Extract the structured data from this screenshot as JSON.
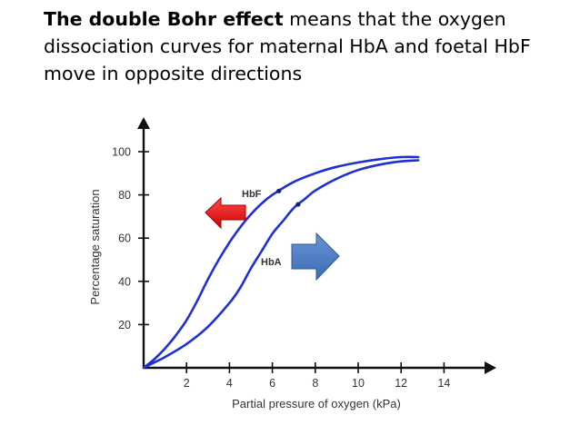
{
  "slide": {
    "heading_bold": "The double Bohr effect",
    "heading_rest": " means that the oxygen dissociation curves for maternal HbA and foetal HbF move in opposite directions"
  },
  "chart_data": {
    "type": "line",
    "xlabel": "Partial pressure of oxygen (kPa)",
    "ylabel": "Percentage saturation",
    "xlim": [
      0,
      14
    ],
    "ylim": [
      0,
      100
    ],
    "x_ticks": [
      2,
      4,
      6,
      8,
      10,
      12,
      14
    ],
    "y_ticks": [
      20,
      40,
      60,
      80,
      100
    ],
    "grid": false,
    "series": [
      {
        "name": "HbF",
        "color": "#1f2fd6",
        "points": [
          [
            0,
            0
          ],
          [
            0.5,
            4
          ],
          [
            1,
            9
          ],
          [
            1.5,
            15
          ],
          [
            2,
            22
          ],
          [
            2.5,
            31
          ],
          [
            3,
            41
          ],
          [
            3.5,
            50
          ],
          [
            4,
            58
          ],
          [
            4.5,
            65
          ],
          [
            5,
            71
          ],
          [
            5.5,
            76
          ],
          [
            6,
            80
          ],
          [
            7,
            86
          ],
          [
            8,
            90
          ],
          [
            9,
            93
          ],
          [
            10,
            95
          ],
          [
            11,
            96.5
          ],
          [
            12,
            97.5
          ],
          [
            12.8,
            97.5
          ]
        ],
        "marker_at_x": 6.3
      },
      {
        "name": "HbA",
        "color": "#1f2fd6",
        "points": [
          [
            0,
            0
          ],
          [
            0.5,
            2.5
          ],
          [
            1,
            5
          ],
          [
            2,
            11
          ],
          [
            3,
            19
          ],
          [
            4,
            30
          ],
          [
            4.5,
            37
          ],
          [
            5,
            46
          ],
          [
            5.5,
            54
          ],
          [
            6,
            62
          ],
          [
            6.5,
            68
          ],
          [
            7,
            74
          ],
          [
            7.5,
            78
          ],
          [
            8,
            82
          ],
          [
            9,
            87.5
          ],
          [
            10,
            91.5
          ],
          [
            11,
            94
          ],
          [
            12,
            95.5
          ],
          [
            12.8,
            96
          ]
        ],
        "marker_at_x": 7.2
      }
    ],
    "annotations": [
      {
        "label": "HbF",
        "direction": "left",
        "arrow_color": "#ee1111"
      },
      {
        "label": "HbA",
        "direction": "right",
        "arrow_color": "#4a7dc4"
      }
    ]
  }
}
